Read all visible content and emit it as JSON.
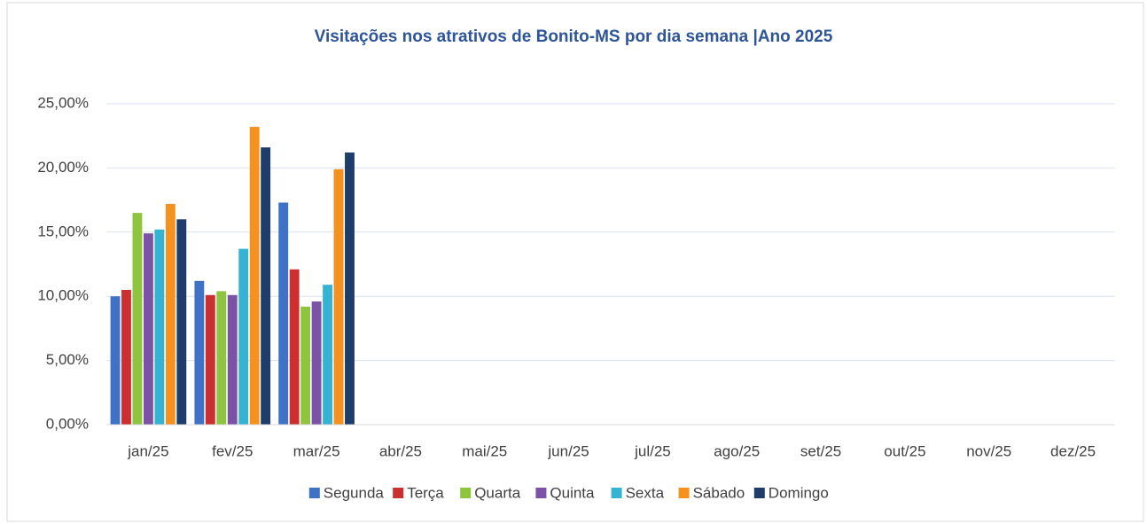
{
  "chart_data": {
    "type": "bar",
    "title": "Visitações nos atrativos de Bonito-MS por dia semana |Ano 2025",
    "categories": [
      "jan/25",
      "fev/25",
      "mar/25",
      "abr/25",
      "mai/25",
      "jun/25",
      "jul/25",
      "ago/25",
      "set/25",
      "out/25",
      "nov/25",
      "dez/25"
    ],
    "series": [
      {
        "name": "Segunda",
        "color": "#3d72c6",
        "values": [
          10.0,
          11.2,
          17.3,
          null,
          null,
          null,
          null,
          null,
          null,
          null,
          null,
          null
        ]
      },
      {
        "name": "Terça",
        "color": "#cc2f2f",
        "values": [
          10.5,
          10.1,
          12.1,
          null,
          null,
          null,
          null,
          null,
          null,
          null,
          null,
          null
        ]
      },
      {
        "name": "Quarta",
        "color": "#8fc43f",
        "values": [
          16.5,
          10.4,
          9.2,
          null,
          null,
          null,
          null,
          null,
          null,
          null,
          null,
          null
        ]
      },
      {
        "name": "Quinta",
        "color": "#7a52a6",
        "values": [
          14.9,
          10.1,
          9.6,
          null,
          null,
          null,
          null,
          null,
          null,
          null,
          null,
          null
        ]
      },
      {
        "name": "Sexta",
        "color": "#35b3d3",
        "values": [
          15.2,
          13.7,
          10.9,
          null,
          null,
          null,
          null,
          null,
          null,
          null,
          null,
          null
        ]
      },
      {
        "name": "Sábado",
        "color": "#f5921f",
        "values": [
          17.2,
          23.2,
          19.9,
          null,
          null,
          null,
          null,
          null,
          null,
          null,
          null,
          null
        ]
      },
      {
        "name": "Domingo",
        "color": "#1f3d6b",
        "values": [
          16.0,
          21.6,
          21.2,
          null,
          null,
          null,
          null,
          null,
          null,
          null,
          null,
          null
        ]
      }
    ],
    "ylim": [
      0,
      25
    ],
    "yticks": [
      {
        "value": 0,
        "label": "0,00%"
      },
      {
        "value": 5,
        "label": "5,00%"
      },
      {
        "value": 10,
        "label": "10,00%"
      },
      {
        "value": 15,
        "label": "15,00%"
      },
      {
        "value": 20,
        "label": "20,00%"
      },
      {
        "value": 25,
        "label": "25,00%"
      }
    ],
    "grid": true,
    "legend": "bottom"
  }
}
